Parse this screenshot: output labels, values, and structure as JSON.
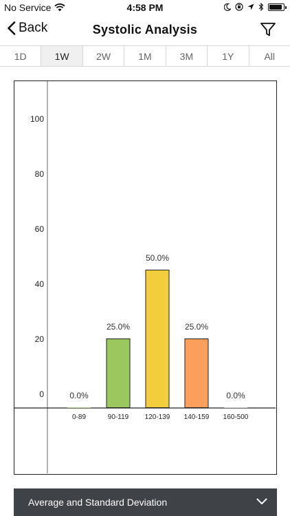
{
  "status": {
    "carrier": "No Service",
    "time": "4:58 PM"
  },
  "nav": {
    "back_label": "Back",
    "title": "Systolic Analysis"
  },
  "periods": [
    {
      "label": "1D",
      "active": false
    },
    {
      "label": "1W",
      "active": true
    },
    {
      "label": "2W",
      "active": false
    },
    {
      "label": "1M",
      "active": false
    },
    {
      "label": "3M",
      "active": false
    },
    {
      "label": "1Y",
      "active": false
    },
    {
      "label": "All",
      "active": false
    }
  ],
  "chart_data": {
    "type": "bar",
    "categories": [
      "0-89",
      "90-119",
      "120-139",
      "140-159",
      "160-500"
    ],
    "values": [
      0,
      25,
      50,
      25,
      0
    ],
    "value_labels": [
      "0.0%",
      "25.0%",
      "50.0%",
      "25.0%",
      "0.0%"
    ],
    "colors": [
      "#9ac75e",
      "#9ac75e",
      "#f2cd3c",
      "#fb9f5a",
      "#cccccc"
    ],
    "yticks": [
      "0",
      "20",
      "40",
      "60",
      "80",
      "100"
    ],
    "ylim": [
      0,
      100
    ],
    "title": "",
    "xlabel": "",
    "ylabel": ""
  },
  "panel": {
    "label": "Average and Standard Deviation"
  }
}
